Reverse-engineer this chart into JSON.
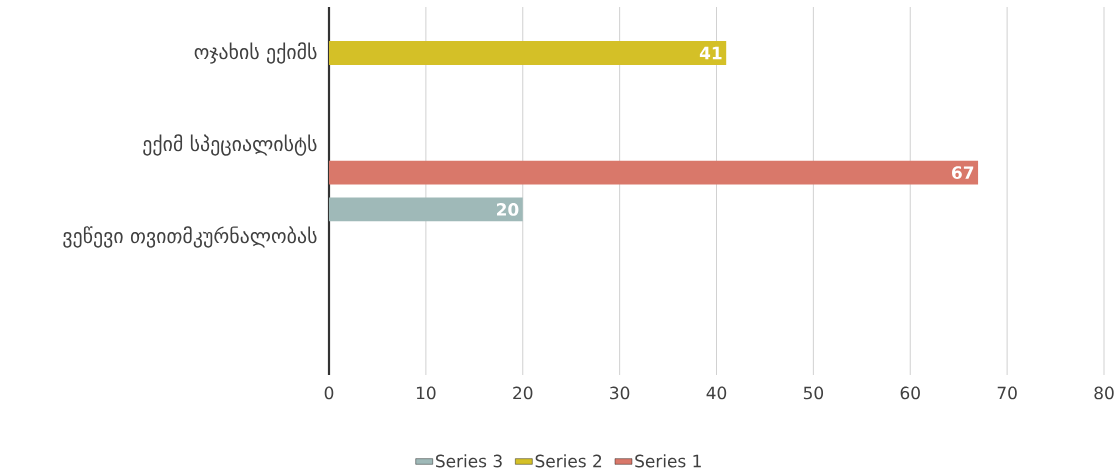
{
  "chart_data": {
    "type": "bar",
    "orientation": "horizontal",
    "categories": [
      "ოჯახის ექიმს",
      "ექიმ სპეციალისტს",
      "ვეწევი თვითმკურნალობას",
      null
    ],
    "series": [
      {
        "name": "Series 1",
        "color": "#d9786a",
        "values": [
          null,
          67,
          null,
          null
        ]
      },
      {
        "name": "Series 2",
        "color": "#d4c027",
        "values": [
          41,
          null,
          null,
          null
        ]
      },
      {
        "name": "Series 3",
        "color": "#9fb9b8",
        "values": [
          null,
          null,
          20,
          null
        ]
      }
    ],
    "xlim": [
      0,
      80
    ],
    "xticks": [
      0,
      10,
      20,
      30,
      40,
      50,
      60,
      70,
      80
    ],
    "grid": "x",
    "legend": "bottom",
    "data_labels": true
  }
}
